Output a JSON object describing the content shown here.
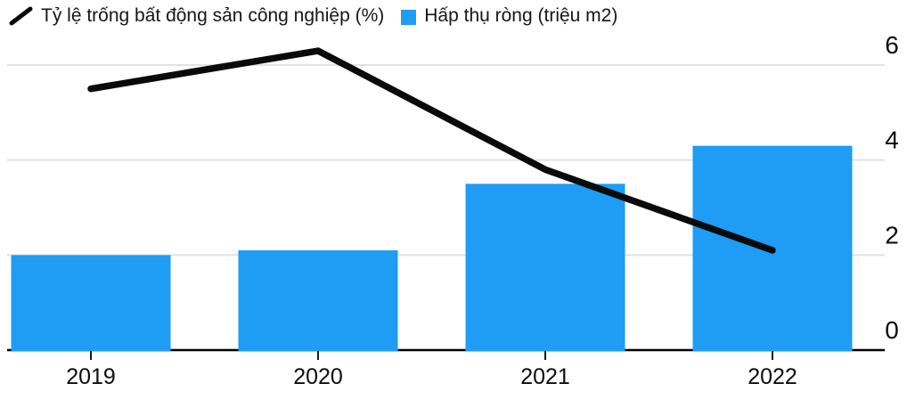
{
  "legend": {
    "vacancy_label": "Tỷ lệ trống bất động sản công nghiệp (%)",
    "absorption_label": "Hấp thụ ròng (triệu m2)"
  },
  "colors": {
    "bar": "#1f9cf3",
    "line": "#0a0a0a",
    "grid": "#e2e2e2",
    "axis": "#000000",
    "text": "#0c0c0c"
  },
  "chart_data": {
    "type": "combo-bar-line",
    "title": "",
    "xlabel": "",
    "ylabel": "",
    "categories": [
      "2019",
      "2020",
      "2021",
      "2022"
    ],
    "series": [
      {
        "name": "Tỷ lệ trống bất động sản công nghiệp (%)",
        "type": "line",
        "color": "#0a0a0a",
        "values": [
          5.5,
          6.3,
          3.8,
          2.1
        ]
      },
      {
        "name": "Hấp thụ ròng (triệu m2)",
        "type": "bar",
        "color": "#1f9cf3",
        "values": [
          2.0,
          2.1,
          3.5,
          4.3
        ]
      }
    ],
    "yticks": [
      0,
      2,
      4,
      6
    ],
    "ylim": [
      0,
      7
    ],
    "y_axis_side": "right",
    "grid": true,
    "legend_position": "top-left"
  }
}
